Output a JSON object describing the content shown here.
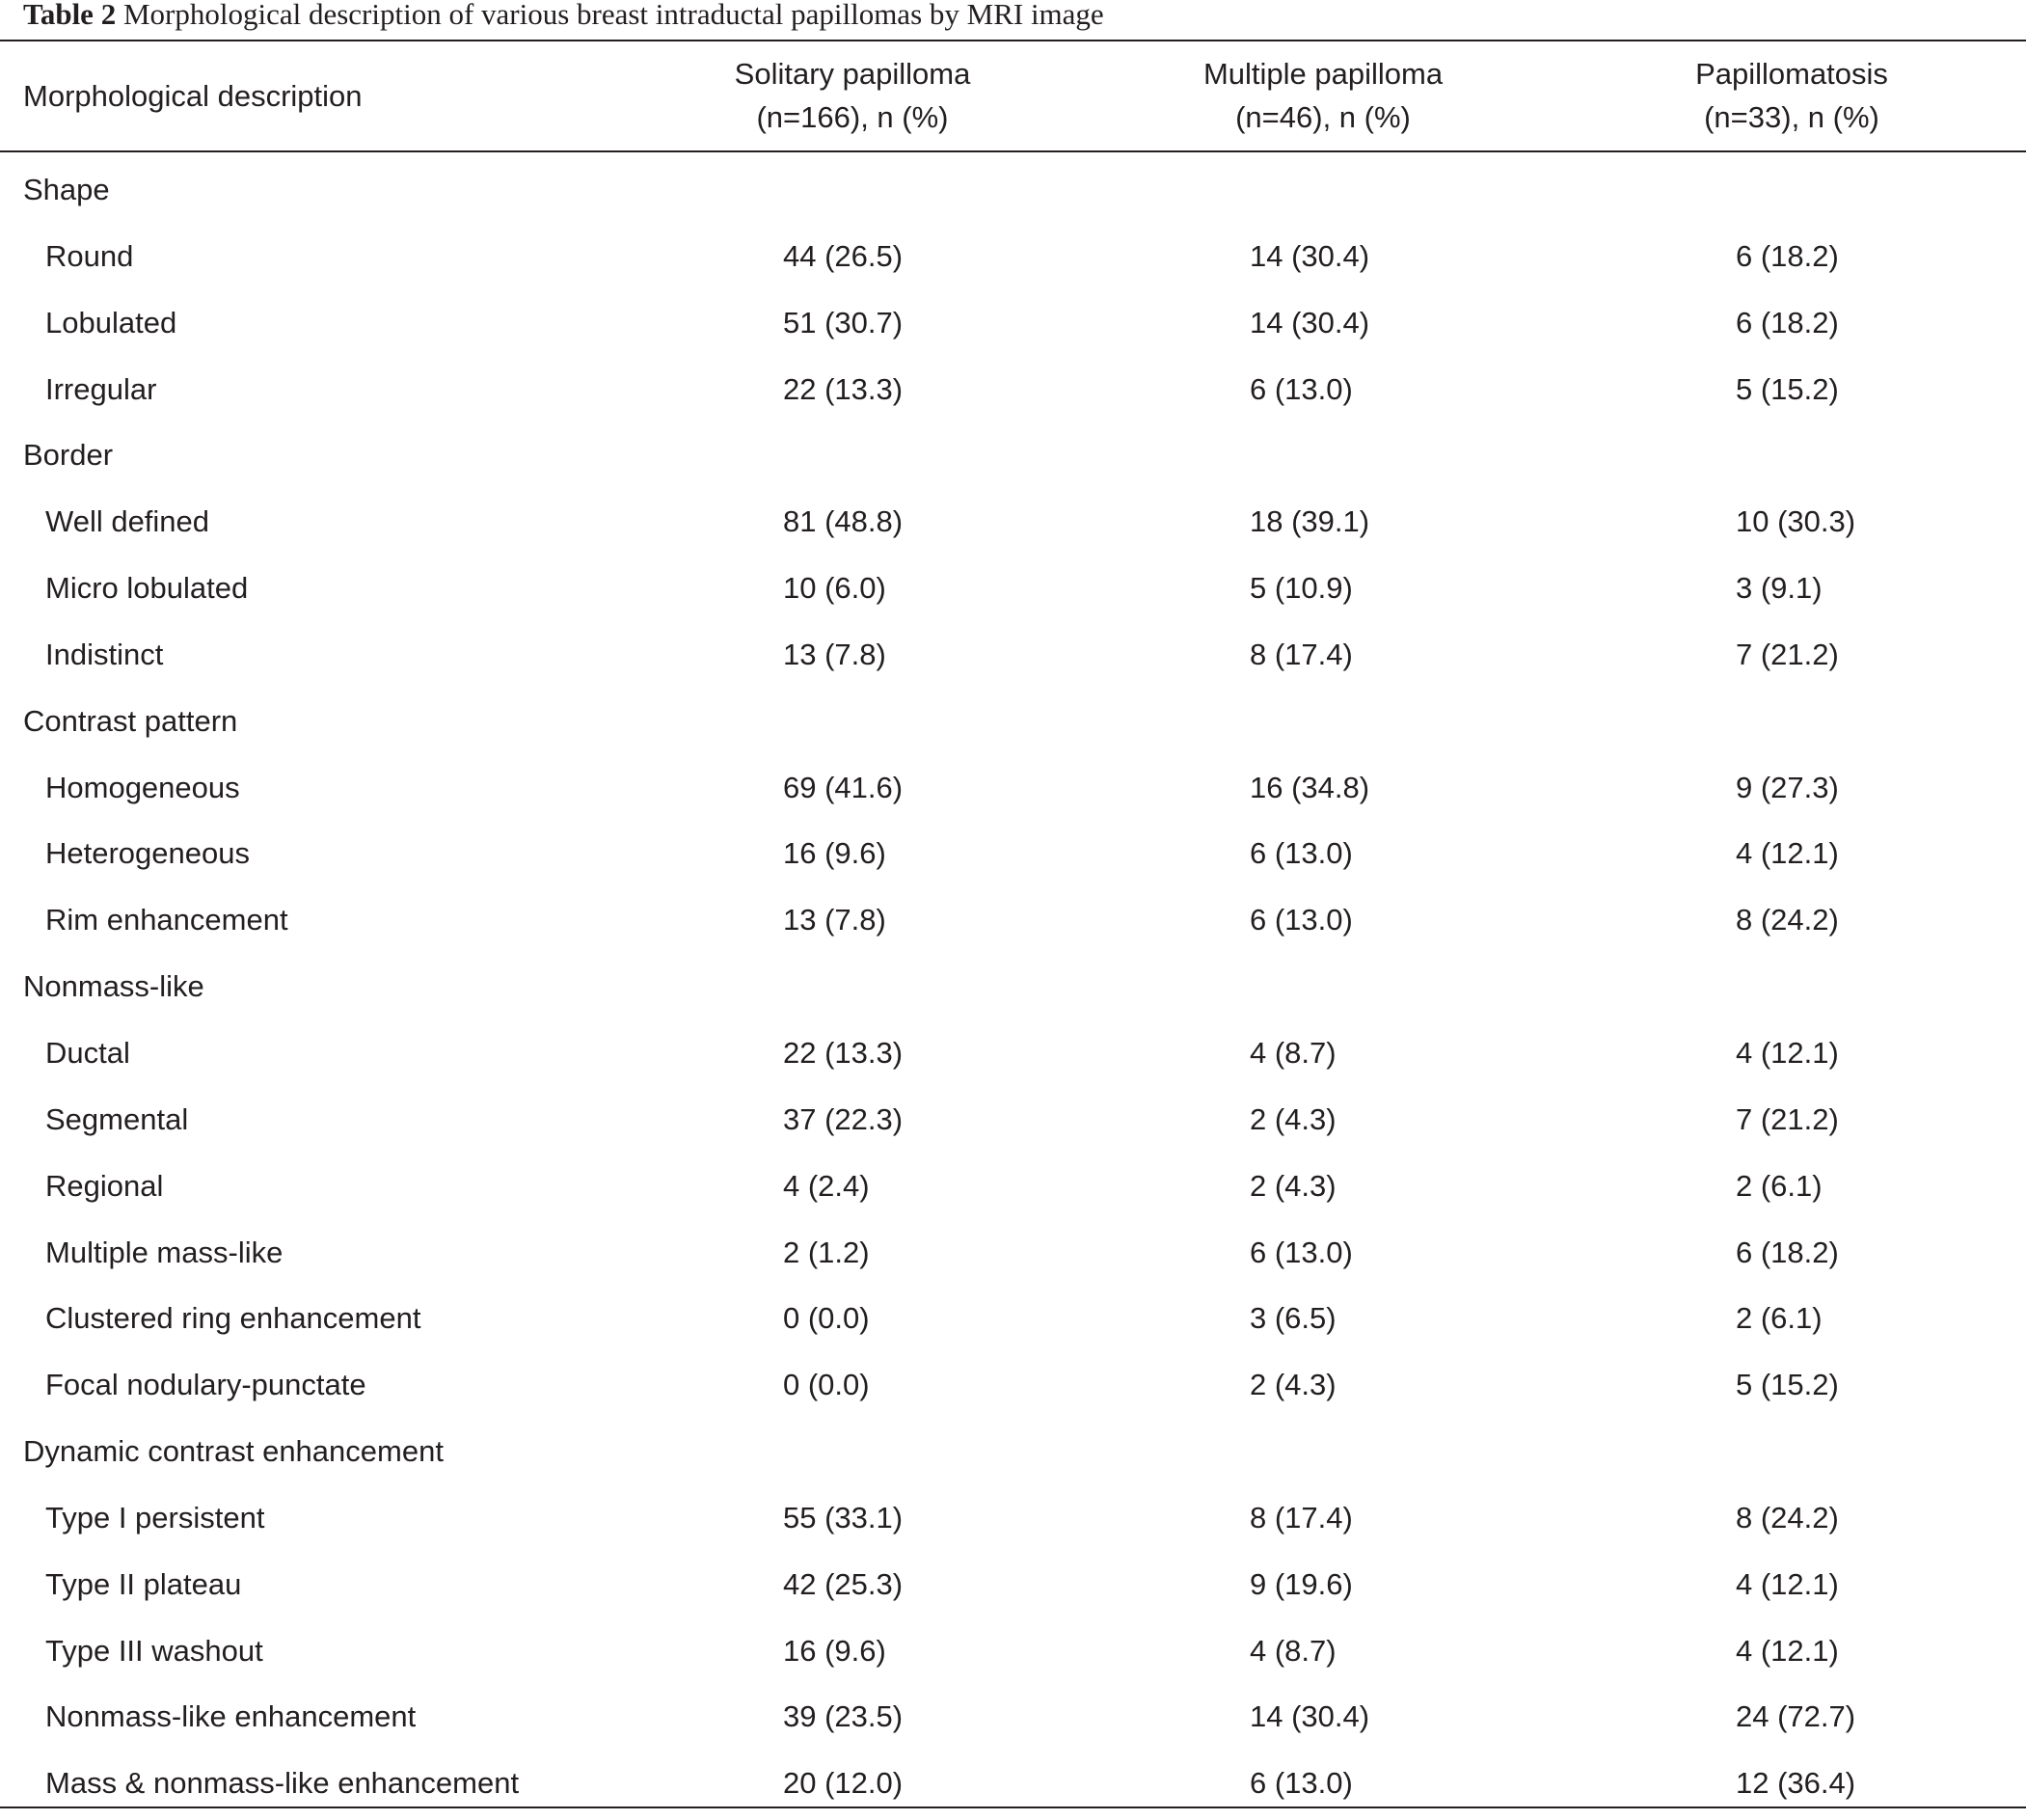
{
  "caption": {
    "label": "Table 2",
    "text": "Morphological description of various breast intraductal papillomas by MRI image"
  },
  "header": {
    "row_label": "Morphological description",
    "columns": [
      {
        "name": "Solitary papilloma",
        "sub": "(n=166), n (%)"
      },
      {
        "name": "Multiple papilloma",
        "sub": "(n=46), n (%)"
      },
      {
        "name": "Papillomatosis",
        "sub": "(n=33), n (%)"
      }
    ]
  },
  "rows": [
    {
      "label": "Shape",
      "section": true,
      "values": [
        "",
        "",
        ""
      ]
    },
    {
      "label": "Round",
      "section": false,
      "values": [
        "44 (26.5)",
        "14 (30.4)",
        "6 (18.2)"
      ]
    },
    {
      "label": "Lobulated",
      "section": false,
      "values": [
        "51 (30.7)",
        "14 (30.4)",
        "6 (18.2)"
      ]
    },
    {
      "label": "Irregular",
      "section": false,
      "values": [
        "22 (13.3)",
        "6 (13.0)",
        "5 (15.2)"
      ]
    },
    {
      "label": "Border",
      "section": true,
      "values": [
        "",
        "",
        ""
      ]
    },
    {
      "label": "Well defined",
      "section": false,
      "values": [
        "81 (48.8)",
        "18 (39.1)",
        "10 (30.3)"
      ]
    },
    {
      "label": "Micro lobulated",
      "section": false,
      "values": [
        "10 (6.0)",
        "5 (10.9)",
        "3 (9.1)"
      ]
    },
    {
      "label": "Indistinct",
      "section": false,
      "values": [
        "13 (7.8)",
        "8 (17.4)",
        "7 (21.2)"
      ]
    },
    {
      "label": "Contrast pattern",
      "section": true,
      "values": [
        "",
        "",
        ""
      ]
    },
    {
      "label": "Homogeneous",
      "section": false,
      "values": [
        "69 (41.6)",
        "16 (34.8)",
        "9 (27.3)"
      ]
    },
    {
      "label": "Heterogeneous",
      "section": false,
      "values": [
        "16 (9.6)",
        "6 (13.0)",
        "4 (12.1)"
      ]
    },
    {
      "label": "Rim enhancement",
      "section": false,
      "values": [
        "13 (7.8)",
        "6 (13.0)",
        "8 (24.2)"
      ]
    },
    {
      "label": "Nonmass-like",
      "section": true,
      "values": [
        "",
        "",
        ""
      ]
    },
    {
      "label": "Ductal",
      "section": false,
      "values": [
        "22 (13.3)",
        "4 (8.7)",
        "4 (12.1)"
      ]
    },
    {
      "label": "Segmental",
      "section": false,
      "values": [
        "37 (22.3)",
        "2 (4.3)",
        "7 (21.2)"
      ]
    },
    {
      "label": "Regional",
      "section": false,
      "values": [
        "4 (2.4)",
        "2 (4.3)",
        "2 (6.1)"
      ]
    },
    {
      "label": "Multiple mass-like",
      "section": false,
      "values": [
        "2 (1.2)",
        "6 (13.0)",
        "6 (18.2)"
      ]
    },
    {
      "label": "Clustered ring enhancement",
      "section": false,
      "values": [
        "0 (0.0)",
        "3 (6.5)",
        "2 (6.1)"
      ]
    },
    {
      "label": "Focal nodulary-punctate",
      "section": false,
      "values": [
        "0 (0.0)",
        "2 (4.3)",
        "5 (15.2)"
      ]
    },
    {
      "label": "Dynamic contrast enhancement",
      "section": true,
      "values": [
        "",
        "",
        ""
      ]
    },
    {
      "label": "Type I persistent",
      "section": false,
      "values": [
        "55 (33.1)",
        "8 (17.4)",
        "8 (24.2)"
      ]
    },
    {
      "label": "Type II plateau",
      "section": false,
      "values": [
        "42 (25.3)",
        "9 (19.6)",
        "4 (12.1)"
      ]
    },
    {
      "label": "Type III washout",
      "section": false,
      "values": [
        "16 (9.6)",
        "4 (8.7)",
        "4 (12.1)"
      ]
    },
    {
      "label": "Nonmass-like enhancement",
      "section": false,
      "values": [
        "39 (23.5)",
        "14 (30.4)",
        "24 (72.7)"
      ]
    },
    {
      "label": "Mass & nonmass-like enhancement",
      "section": false,
      "values": [
        "20 (12.0)",
        "6 (13.0)",
        "12 (36.4)"
      ]
    }
  ]
}
